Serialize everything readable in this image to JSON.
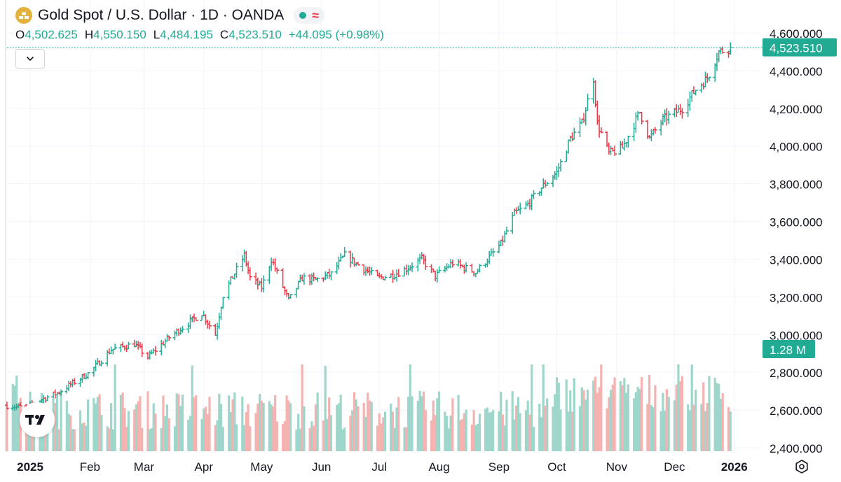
{
  "header": {
    "symbol_title": "Gold Spot / U.S. Dollar · 1D · OANDA",
    "logo_icon": "gold-bars-icon",
    "status_icons": [
      "market-open-dot-icon",
      "delayed-data-wave-icon"
    ]
  },
  "ohlc": {
    "open_label": "O",
    "open": "4,502.625",
    "high_label": "H",
    "high": "4,550.150",
    "low_label": "L",
    "low": "4,484.195",
    "close_label": "C",
    "close": "4,523.510",
    "change": "+44.095 (+0.98%)"
  },
  "controls": {
    "collapse_icon": "chevron-down-icon",
    "settings_icon": "gear-icon",
    "brand_logo": "tradingview-logo-icon"
  },
  "colors": {
    "up": "#22ab94",
    "down": "#f23645",
    "volume_up": "#9fd6cc",
    "volume_down": "#f4b2b1",
    "grid": "#f0f3fa",
    "text": "#131722",
    "axis_text": "#131722"
  },
  "chart_data": {
    "type": "ohlc",
    "title": "Gold Spot / U.S. Dollar · 1D · OANDA",
    "interval": "1D",
    "y_axis": {
      "range": [
        2400,
        4600
      ],
      "ticks": [
        2400,
        2600,
        2800,
        3000,
        3200,
        3400,
        3600,
        3800,
        4000,
        4200,
        4400,
        4600
      ],
      "tick_labels": [
        "2,400.000",
        "2,600.000",
        "2,800.000",
        "3,000.000",
        "3,200.000",
        "3,400.000",
        "3,600.000",
        "3,800.000",
        "4,000.000",
        "4,200.000",
        "4,400.000",
        "4,600.000"
      ],
      "position": "right"
    },
    "x_axis": {
      "start": "2024-12-20",
      "end": "2026-01-05",
      "tick_labels": [
        "2025",
        "Feb",
        "Mar",
        "Apr",
        "May",
        "Jun",
        "Jul",
        "Aug",
        "Sep",
        "Oct",
        "Nov",
        "Dec",
        "2026"
      ],
      "tick_dates": [
        "2025-01-01",
        "2025-02-01",
        "2025-03-01",
        "2025-04-01",
        "2025-05-01",
        "2025-06-01",
        "2025-07-01",
        "2025-08-01",
        "2025-09-01",
        "2025-10-01",
        "2025-11-01",
        "2025-12-01",
        "2026-01-01"
      ],
      "bold_labels": [
        "2025",
        "2026"
      ]
    },
    "last_price": {
      "value": 4523.51,
      "label": "4,523.510"
    },
    "volume_label": "1.28 M",
    "grid": true,
    "price_path": {
      "dates": [
        "2024-12-20",
        "2024-12-31",
        "2025-01-03",
        "2025-01-15",
        "2025-02-01",
        "2025-02-12",
        "2025-02-24",
        "2025-03-03",
        "2025-03-14",
        "2025-03-31",
        "2025-04-07",
        "2025-04-11",
        "2025-04-22",
        "2025-04-25",
        "2025-05-01",
        "2025-05-06",
        "2025-05-15",
        "2025-05-22",
        "2025-05-29",
        "2025-06-06",
        "2025-06-13",
        "2025-06-20",
        "2025-06-30",
        "2025-07-09",
        "2025-07-15",
        "2025-07-23",
        "2025-07-30",
        "2025-08-08",
        "2025-08-20",
        "2025-09-02",
        "2025-09-09",
        "2025-09-16",
        "2025-09-23",
        "2025-10-01",
        "2025-10-08",
        "2025-10-14",
        "2025-10-20",
        "2025-10-22",
        "2025-10-28",
        "2025-11-04",
        "2025-11-13",
        "2025-11-18",
        "2025-11-25",
        "2025-12-05",
        "2025-12-12",
        "2025-12-18",
        "2025-12-24",
        "2025-12-30"
      ],
      "close": [
        2625,
        2610,
        2640,
        2690,
        2800,
        2920,
        2950,
        2880,
        2985,
        3115,
        3000,
        3210,
        3420,
        3300,
        3250,
        3400,
        3180,
        3300,
        3290,
        3320,
        3420,
        3370,
        3300,
        3320,
        3350,
        3400,
        3310,
        3380,
        3330,
        3480,
        3640,
        3690,
        3780,
        3860,
        4040,
        4120,
        4360,
        4120,
        3960,
        3990,
        4180,
        4040,
        4140,
        4200,
        4300,
        4360,
        4500,
        4520
      ]
    },
    "volume_axis": {
      "range": [
        0,
        1600000
      ]
    }
  },
  "axis_labels": {
    "y": [
      "2,400.000",
      "2,600.000",
      "2,800.000",
      "3,000.000",
      "3,200.000",
      "3,400.000",
      "3,600.000",
      "3,800.000",
      "4,000.000",
      "4,200.000",
      "4,400.000",
      "4,600.000"
    ],
    "x": [
      "2025",
      "Feb",
      "Mar",
      "Apr",
      "May",
      "Jun",
      "Jul",
      "Aug",
      "Sep",
      "Oct",
      "Nov",
      "Dec",
      "2026"
    ]
  }
}
